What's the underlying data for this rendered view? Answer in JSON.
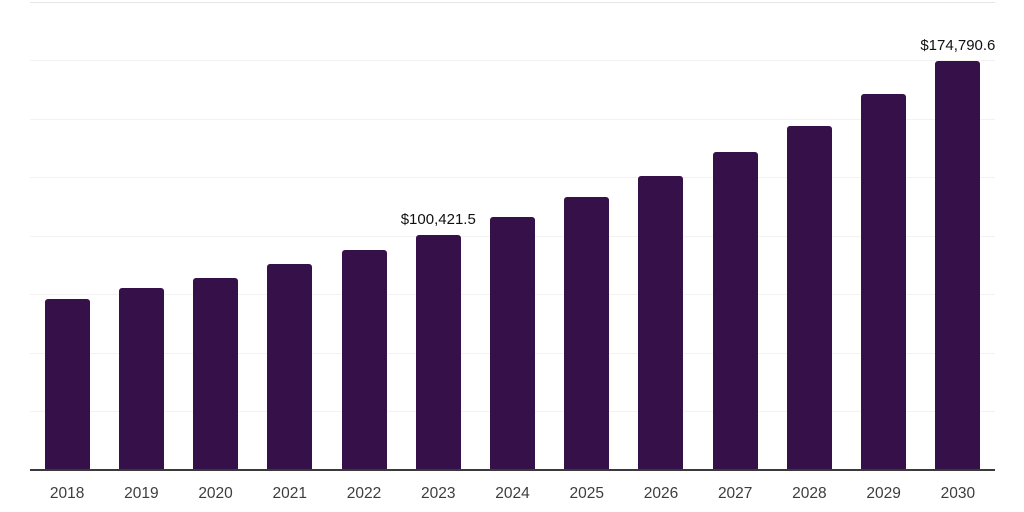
{
  "chart_data": {
    "type": "bar",
    "title": "",
    "xlabel": "",
    "ylabel": "",
    "categories": [
      "2018",
      "2019",
      "2020",
      "2021",
      "2022",
      "2023",
      "2024",
      "2025",
      "2026",
      "2027",
      "2028",
      "2029",
      "2030"
    ],
    "values": [
      73000,
      77800,
      82000,
      88000,
      94000,
      100421.5,
      108100,
      116700,
      125600,
      135900,
      147000,
      160700,
      174790.6
    ],
    "bar_labels": [
      "",
      "",
      "",
      "",
      "",
      "$100,421.5",
      "",
      "",
      "",
      "",
      "",
      "",
      "$174,790.6"
    ],
    "ylim": [
      0,
      200000
    ],
    "grid_step": 25000,
    "grid": true,
    "legend": "none",
    "y_axis_labels_visible": false,
    "colors": {
      "bar": "#351049",
      "axis": "#3a3a3a",
      "gridline": "#f2f2f2",
      "gridline_top": "#e5e5e5",
      "tick_label": "#3d3d3d",
      "value_label": "#111111",
      "background": "#ffffff"
    }
  }
}
